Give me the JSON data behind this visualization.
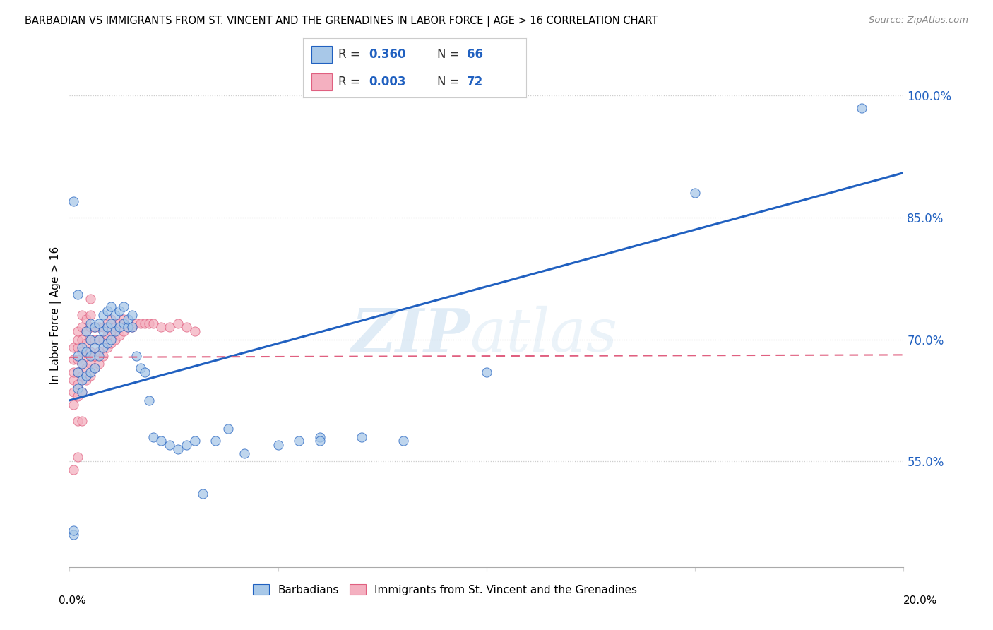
{
  "title": "BARBADIAN VS IMMIGRANTS FROM ST. VINCENT AND THE GRENADINES IN LABOR FORCE | AGE > 16 CORRELATION CHART",
  "source": "Source: ZipAtlas.com",
  "ylabel": "In Labor Force | Age > 16",
  "xlim": [
    0.0,
    0.2
  ],
  "ylim": [
    0.42,
    1.04
  ],
  "yticks": [
    0.55,
    0.7,
    0.85,
    1.0
  ],
  "ytick_labels": [
    "55.0%",
    "70.0%",
    "85.0%",
    "100.0%"
  ],
  "blue_label": "Barbadians",
  "pink_label": "Immigrants from St. Vincent and the Grenadines",
  "blue_R": "0.360",
  "blue_N": "66",
  "pink_R": "0.003",
  "pink_N": "72",
  "blue_color": "#a8c8e8",
  "pink_color": "#f4b0c0",
  "blue_line_color": "#2060c0",
  "pink_line_color": "#e06080",
  "watermark_zip": "ZIP",
  "watermark_atlas": "atlas",
  "blue_scatter_x": [
    0.001,
    0.001,
    0.002,
    0.002,
    0.002,
    0.003,
    0.003,
    0.003,
    0.003,
    0.004,
    0.004,
    0.004,
    0.005,
    0.005,
    0.005,
    0.005,
    0.006,
    0.006,
    0.006,
    0.007,
    0.007,
    0.007,
    0.008,
    0.008,
    0.008,
    0.009,
    0.009,
    0.009,
    0.01,
    0.01,
    0.01,
    0.011,
    0.011,
    0.012,
    0.012,
    0.013,
    0.013,
    0.014,
    0.014,
    0.015,
    0.015,
    0.016,
    0.017,
    0.018,
    0.019,
    0.02,
    0.022,
    0.024,
    0.026,
    0.028,
    0.03,
    0.032,
    0.035,
    0.038,
    0.042,
    0.05,
    0.055,
    0.06,
    0.001,
    0.002,
    0.06,
    0.07,
    0.08,
    0.1,
    0.15,
    0.19
  ],
  "blue_scatter_y": [
    0.46,
    0.465,
    0.64,
    0.66,
    0.68,
    0.635,
    0.65,
    0.67,
    0.69,
    0.655,
    0.685,
    0.71,
    0.66,
    0.68,
    0.7,
    0.72,
    0.665,
    0.69,
    0.715,
    0.68,
    0.7,
    0.72,
    0.69,
    0.71,
    0.73,
    0.695,
    0.715,
    0.735,
    0.7,
    0.72,
    0.74,
    0.71,
    0.73,
    0.715,
    0.735,
    0.72,
    0.74,
    0.715,
    0.725,
    0.715,
    0.73,
    0.68,
    0.665,
    0.66,
    0.625,
    0.58,
    0.575,
    0.57,
    0.565,
    0.57,
    0.575,
    0.51,
    0.575,
    0.59,
    0.56,
    0.57,
    0.575,
    0.58,
    0.87,
    0.755,
    0.575,
    0.58,
    0.575,
    0.66,
    0.88,
    0.985
  ],
  "pink_scatter_x": [
    0.001,
    0.001,
    0.001,
    0.001,
    0.001,
    0.001,
    0.001,
    0.002,
    0.002,
    0.002,
    0.002,
    0.002,
    0.002,
    0.002,
    0.002,
    0.002,
    0.003,
    0.003,
    0.003,
    0.003,
    0.003,
    0.003,
    0.003,
    0.003,
    0.004,
    0.004,
    0.004,
    0.004,
    0.004,
    0.004,
    0.005,
    0.005,
    0.005,
    0.005,
    0.005,
    0.005,
    0.005,
    0.006,
    0.006,
    0.006,
    0.006,
    0.007,
    0.007,
    0.007,
    0.007,
    0.008,
    0.008,
    0.008,
    0.009,
    0.009,
    0.009,
    0.01,
    0.01,
    0.01,
    0.011,
    0.011,
    0.012,
    0.012,
    0.013,
    0.013,
    0.014,
    0.015,
    0.016,
    0.017,
    0.018,
    0.019,
    0.02,
    0.022,
    0.024,
    0.026,
    0.028,
    0.03
  ],
  "pink_scatter_y": [
    0.54,
    0.62,
    0.635,
    0.65,
    0.66,
    0.675,
    0.69,
    0.555,
    0.6,
    0.63,
    0.645,
    0.66,
    0.675,
    0.69,
    0.7,
    0.71,
    0.6,
    0.635,
    0.655,
    0.67,
    0.685,
    0.7,
    0.715,
    0.73,
    0.65,
    0.665,
    0.68,
    0.695,
    0.71,
    0.725,
    0.655,
    0.67,
    0.685,
    0.7,
    0.715,
    0.73,
    0.75,
    0.665,
    0.68,
    0.7,
    0.715,
    0.67,
    0.685,
    0.7,
    0.715,
    0.68,
    0.7,
    0.715,
    0.69,
    0.705,
    0.72,
    0.695,
    0.71,
    0.725,
    0.7,
    0.715,
    0.705,
    0.72,
    0.71,
    0.725,
    0.715,
    0.715,
    0.72,
    0.72,
    0.72,
    0.72,
    0.72,
    0.715,
    0.715,
    0.72,
    0.715,
    0.71
  ],
  "blue_trend_x": [
    0.0,
    0.2
  ],
  "blue_trend_y": [
    0.625,
    0.905
  ],
  "pink_trend_x": [
    0.0,
    0.2
  ],
  "pink_trend_y": [
    0.678,
    0.681
  ]
}
